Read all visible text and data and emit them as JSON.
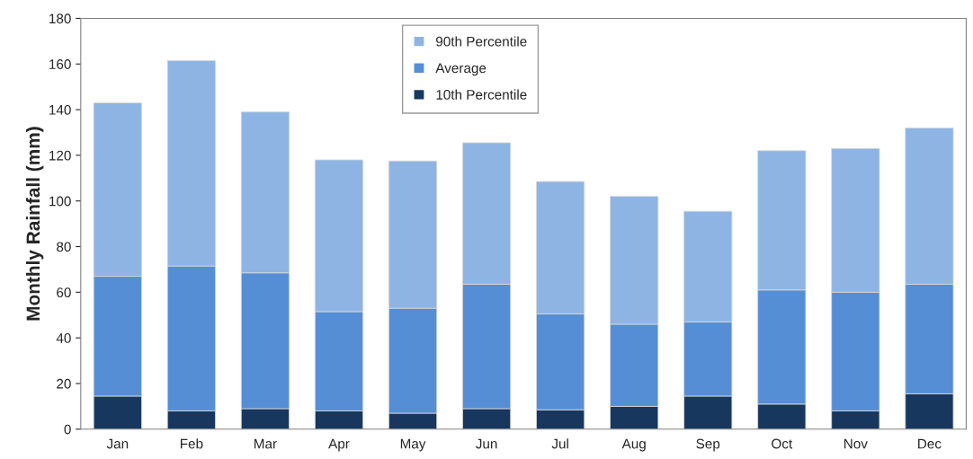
{
  "chart_data": {
    "type": "bar",
    "stacked": true,
    "ylabel": "Monthly Rainfall (mm)",
    "categories": [
      "Jan",
      "Feb",
      "Mar",
      "Apr",
      "May",
      "Jun",
      "Jul",
      "Aug",
      "Sep",
      "Oct",
      "Nov",
      "Dec"
    ],
    "series": [
      {
        "name": "10th Percentile",
        "color": "#17375e",
        "values": [
          14.5,
          8,
          9,
          8,
          7,
          9,
          8.5,
          10,
          14.5,
          11,
          8,
          15.5
        ]
      },
      {
        "name": "Average",
        "color": "#558ed5",
        "values": [
          52.5,
          63.5,
          59.5,
          43.5,
          46,
          54.5,
          42,
          36,
          32.5,
          50,
          52,
          48
        ]
      },
      {
        "name": "90th Percentile",
        "color": "#8eb4e3",
        "values": [
          76,
          90,
          70.5,
          66.5,
          64.5,
          62,
          58,
          56,
          48.5,
          61,
          63,
          68.5
        ]
      }
    ],
    "ylim": [
      0,
      180
    ],
    "yticks": [
      0,
      20,
      40,
      60,
      80,
      100,
      120,
      140,
      160,
      180
    ],
    "grid": false,
    "legend": "top"
  }
}
